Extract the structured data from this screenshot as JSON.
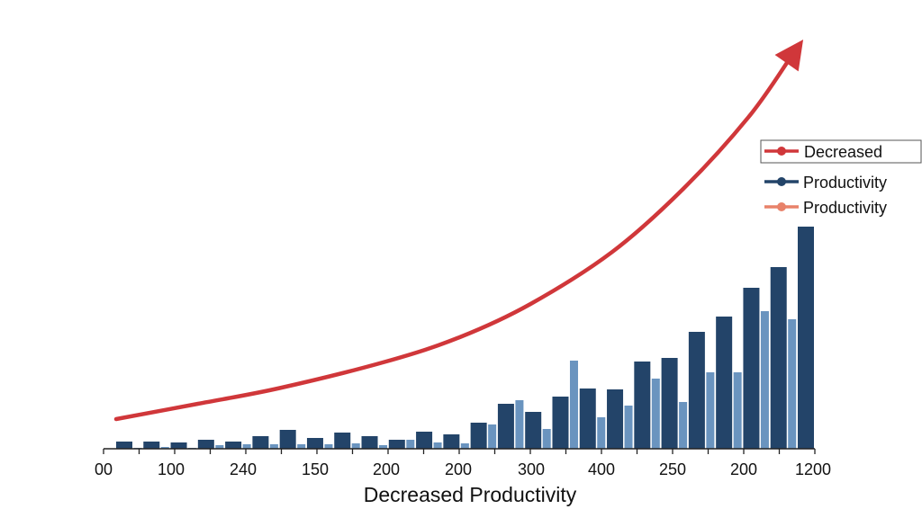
{
  "chart_data": {
    "type": "bar",
    "title": "",
    "xlabel": "Decreased Productivity",
    "ylabel": "",
    "ylim": [
      0,
      182
    ],
    "grid": false,
    "legend_position": "right",
    "x_tick_labels": [
      "00",
      "100",
      "240",
      "150",
      "200",
      "200",
      "300",
      "400",
      "250",
      "200",
      "1200"
    ],
    "colors": {
      "trend": "#d0373a",
      "dark": "#234469",
      "light": "#6a94bf",
      "legend_light": "#e8826a",
      "axis": "#222222"
    },
    "series": [
      {
        "values": [
          3.2,
          3.2,
          2.8,
          4,
          3.2,
          5.6,
          8.4,
          4.8,
          7.2,
          5.6,
          4,
          7.6,
          6.4,
          11.6,
          20,
          16.4,
          23.2,
          26.8,
          26.4,
          38.8,
          40.4,
          52,
          58.8,
          71.6,
          80.8,
          98.8
        ]
      },
      {
        "values": [
          0.4,
          0.8,
          0.4,
          1.6,
          2,
          2,
          2,
          2,
          2.4,
          1.6,
          4,
          2.8,
          2.4,
          10.8,
          21.6,
          8.8,
          39.2,
          14,
          19.2,
          31.2,
          20.8,
          34,
          34,
          61.2,
          57.6
        ]
      }
    ],
    "trend_line": {
      "x": [
        0,
        3,
        6,
        9.9,
        12.6,
        15.2,
        18.2,
        20.8,
        23.2,
        25.2
      ],
      "y": [
        13.2,
        20,
        27,
        38.8,
        49.6,
        64.4,
        87.6,
        115.6,
        147.6,
        182
      ]
    },
    "legend": [
      {
        "label": "Decreased",
        "color": "#d0373a",
        "boxed": true
      },
      {
        "label": "Productivity",
        "color": "#234469"
      },
      {
        "label": "Productivity",
        "color": "#e8826a"
      }
    ]
  }
}
